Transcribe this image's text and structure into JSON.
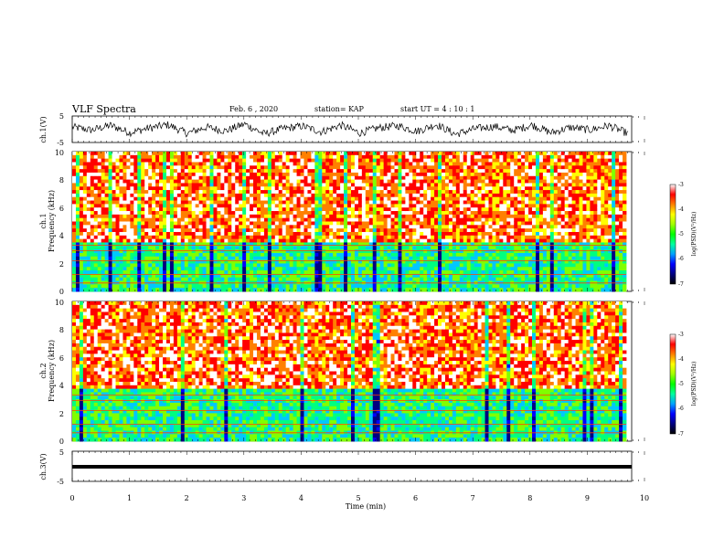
{
  "header": {
    "title": "VLF Spectra",
    "date": "Feb. 6 , 2020",
    "station": "station= KAP",
    "start_ut": "start UT = 4 : 10 : 1"
  },
  "chart_data": [
    {
      "type": "line",
      "ylabel": "ch.1(V)",
      "ylim": [
        -5,
        5
      ],
      "yticks": [
        5,
        -5
      ],
      "xlim": [
        0,
        10
      ],
      "description_values": "waveform amplitude roughly -3 to +3 V across the record",
      "series": [
        {
          "values": [
            1.2,
            -0.5,
            2.1,
            -1.8,
            0.6,
            2.4,
            -2.2,
            1.1,
            -0.9,
            2.8,
            -2.5,
            0.3,
            1.7,
            -1.4,
            2.2,
            -2.0,
            0.8,
            1.9,
            -1.1,
            2.6,
            -2.7,
            0.2,
            1.5,
            -0.6,
            2.3,
            -1.9,
            1.0,
            -0.4,
            2.0,
            -2.3
          ]
        }
      ]
    },
    {
      "type": "heatmap",
      "ylabel_line1": "ch.1",
      "ylabel_line2": "Frequency (kHz)",
      "ylim": [
        0,
        10
      ],
      "yticks": [
        "10",
        "8",
        "6",
        "4",
        "2",
        "0"
      ],
      "xlim": [
        0,
        9.8
      ],
      "colorbar": {
        "label": "log(PSD)(V²/Hz)",
        "range": [
          -7,
          -3
        ],
        "ticks": [
          "-3",
          "-4",
          "-5",
          "-6",
          "-7"
        ]
      }
    },
    {
      "type": "heatmap",
      "ylabel_line1": "ch.2",
      "ylabel_line2": "Frequency (kHz)",
      "ylim": [
        0,
        10
      ],
      "yticks": [
        "10",
        "8",
        "6",
        "4",
        "2",
        "0"
      ],
      "xlim": [
        0,
        9.8
      ],
      "colorbar": {
        "label": "log(PSD)(V²/Hz)",
        "range": [
          -7,
          -3
        ],
        "ticks": [
          "-3",
          "-4",
          "-5",
          "-6",
          "-7"
        ]
      }
    },
    {
      "type": "line",
      "ylabel": "ch.3(V)",
      "ylim": [
        -5,
        5
      ],
      "yticks": [
        "5",
        "-5"
      ],
      "series": [
        {
          "values": [
            -1.3,
            -1.3
          ]
        }
      ]
    }
  ],
  "xaxis": {
    "label": "Time (min)",
    "ticks": [
      "0",
      "1",
      "2",
      "3",
      "4",
      "5",
      "6",
      "7",
      "8",
      "9",
      "10"
    ]
  },
  "colors": {
    "colormap": [
      "#000080",
      "#0000ff",
      "#00c8ff",
      "#00ff80",
      "#80ff00",
      "#ffff00",
      "#ff8000",
      "#ff0000",
      "#ffffff"
    ]
  }
}
